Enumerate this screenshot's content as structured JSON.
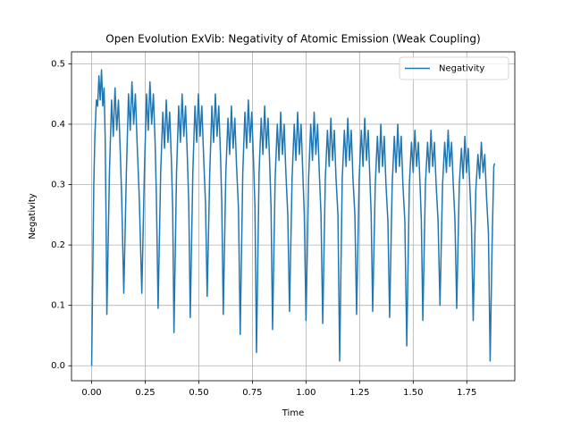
{
  "chart_data": {
    "type": "line",
    "title": "Open Evolution ExVib: Negativity of Atomic Emission (Weak Coupling)",
    "x_label": "Time",
    "y_label": "Negativity",
    "x": [
      0,
      0.005,
      0.01,
      0.015,
      0.022,
      0.028,
      0.034,
      0.04,
      0.046,
      0.052,
      0.058,
      0.063,
      0.067,
      0.071,
      0.083,
      0.093,
      0.101,
      0.109,
      0.117,
      0.125,
      0.133,
      0.14,
      0.15,
      0.162,
      0.172,
      0.18,
      0.188,
      0.196,
      0.204,
      0.212,
      0.222,
      0.234,
      0.246,
      0.256,
      0.264,
      0.272,
      0.28,
      0.288,
      0.296,
      0.302,
      0.31,
      0.322,
      0.332,
      0.34,
      0.348,
      0.356,
      0.364,
      0.372,
      0.378,
      0.384,
      0.396,
      0.406,
      0.414,
      0.422,
      0.43,
      0.438,
      0.446,
      0.453,
      0.46,
      0.472,
      0.482,
      0.49,
      0.498,
      0.506,
      0.514,
      0.522,
      0.531,
      0.539,
      0.551,
      0.561,
      0.569,
      0.577,
      0.585,
      0.593,
      0.601,
      0.607,
      0.614,
      0.626,
      0.636,
      0.644,
      0.652,
      0.66,
      0.668,
      0.676,
      0.685,
      0.693,
      0.705,
      0.715,
      0.723,
      0.731,
      0.739,
      0.747,
      0.755,
      0.762,
      0.769,
      0.781,
      0.791,
      0.799,
      0.807,
      0.815,
      0.823,
      0.831,
      0.837,
      0.844,
      0.856,
      0.866,
      0.874,
      0.882,
      0.89,
      0.898,
      0.906,
      0.915,
      0.923,
      0.935,
      0.945,
      0.953,
      0.961,
      0.969,
      0.977,
      0.985,
      0.992,
      1.0,
      1.012,
      1.022,
      1.03,
      1.038,
      1.046,
      1.054,
      1.062,
      1.07,
      1.078,
      1.09,
      1.1,
      1.108,
      1.116,
      1.124,
      1.132,
      1.14,
      1.149,
      1.157,
      1.169,
      1.179,
      1.187,
      1.195,
      1.203,
      1.211,
      1.219,
      1.228,
      1.236,
      1.248,
      1.258,
      1.266,
      1.274,
      1.282,
      1.29,
      1.298,
      1.304,
      1.311,
      1.323,
      1.333,
      1.341,
      1.349,
      1.357,
      1.365,
      1.373,
      1.382,
      1.39,
      1.402,
      1.412,
      1.42,
      1.428,
      1.436,
      1.444,
      1.452,
      1.461,
      1.47,
      1.482,
      1.492,
      1.5,
      1.508,
      1.516,
      1.524,
      1.532,
      1.538,
      1.545,
      1.557,
      1.567,
      1.575,
      1.583,
      1.591,
      1.599,
      1.607,
      1.616,
      1.625,
      1.637,
      1.647,
      1.655,
      1.663,
      1.671,
      1.679,
      1.687,
      1.695,
      1.703,
      1.715,
      1.725,
      1.733,
      1.741,
      1.749,
      1.757,
      1.765,
      1.772,
      1.78,
      1.792,
      1.802,
      1.81,
      1.818,
      1.826,
      1.834,
      1.842,
      1.851,
      1.859,
      1.868,
      1.876,
      1.88
    ],
    "series": [
      {
        "name": "Negativity",
        "color": "#1f77b4",
        "values": [
          0,
          0.15,
          0.3,
          0.38,
          0.44,
          0.43,
          0.48,
          0.44,
          0.49,
          0.43,
          0.46,
          0.38,
          0.25,
          0.085,
          0.32,
          0.44,
          0.38,
          0.46,
          0.39,
          0.44,
          0.36,
          0.28,
          0.12,
          0.32,
          0.45,
          0.39,
          0.47,
          0.4,
          0.45,
          0.37,
          0.28,
          0.12,
          0.32,
          0.45,
          0.39,
          0.47,
          0.4,
          0.45,
          0.37,
          0.28,
          0.095,
          0.32,
          0.42,
          0.36,
          0.44,
          0.37,
          0.42,
          0.34,
          0.26,
          0.055,
          0.32,
          0.43,
          0.37,
          0.45,
          0.38,
          0.43,
          0.35,
          0.27,
          0.08,
          0.32,
          0.43,
          0.37,
          0.45,
          0.38,
          0.43,
          0.35,
          0.27,
          0.115,
          0.32,
          0.43,
          0.37,
          0.45,
          0.38,
          0.43,
          0.35,
          0.27,
          0.085,
          0.32,
          0.41,
          0.35,
          0.43,
          0.36,
          0.41,
          0.33,
          0.26,
          0.052,
          0.32,
          0.42,
          0.36,
          0.44,
          0.37,
          0.42,
          0.34,
          0.26,
          0.022,
          0.32,
          0.41,
          0.35,
          0.43,
          0.36,
          0.41,
          0.33,
          0.26,
          0.06,
          0.31,
          0.4,
          0.34,
          0.42,
          0.35,
          0.4,
          0.32,
          0.25,
          0.09,
          0.31,
          0.4,
          0.34,
          0.42,
          0.35,
          0.4,
          0.32,
          0.25,
          0.075,
          0.31,
          0.4,
          0.34,
          0.42,
          0.35,
          0.4,
          0.32,
          0.25,
          0.07,
          0.31,
          0.39,
          0.33,
          0.41,
          0.34,
          0.39,
          0.31,
          0.25,
          0.008,
          0.31,
          0.39,
          0.33,
          0.41,
          0.34,
          0.39,
          0.31,
          0.25,
          0.085,
          0.31,
          0.39,
          0.33,
          0.41,
          0.34,
          0.39,
          0.31,
          0.25,
          0.09,
          0.3,
          0.38,
          0.32,
          0.4,
          0.33,
          0.38,
          0.3,
          0.24,
          0.08,
          0.3,
          0.38,
          0.32,
          0.4,
          0.33,
          0.38,
          0.3,
          0.24,
          0.033,
          0.3,
          0.37,
          0.32,
          0.39,
          0.33,
          0.37,
          0.3,
          0.24,
          0.075,
          0.3,
          0.37,
          0.32,
          0.39,
          0.33,
          0.37,
          0.3,
          0.24,
          0.1,
          0.3,
          0.37,
          0.32,
          0.39,
          0.33,
          0.37,
          0.3,
          0.24,
          0.095,
          0.3,
          0.36,
          0.31,
          0.38,
          0.32,
          0.36,
          0.29,
          0.23,
          0.075,
          0.29,
          0.35,
          0.31,
          0.37,
          0.32,
          0.35,
          0.28,
          0.22,
          0.008,
          0.2,
          0.33,
          0.335
        ]
      }
    ],
    "xlim": [
      -0.094,
      1.974
    ],
    "ylim": [
      -0.0248,
      0.5198
    ],
    "xticks": [
      {
        "value": 0,
        "label": "0.00"
      },
      {
        "value": 0.25,
        "label": "0.25"
      },
      {
        "value": 0.5,
        "label": "0.50"
      },
      {
        "value": 0.75,
        "label": "0.75"
      },
      {
        "value": 1,
        "label": "1.00"
      },
      {
        "value": 1.25,
        "label": "1.25"
      },
      {
        "value": 1.5,
        "label": "1.50"
      },
      {
        "value": 1.75,
        "label": "1.75"
      }
    ],
    "yticks": [
      {
        "value": 0,
        "label": "0.0"
      },
      0.1,
      0.2,
      0.3,
      0.4,
      0.5
    ],
    "grid": true,
    "legend": "upper right"
  }
}
